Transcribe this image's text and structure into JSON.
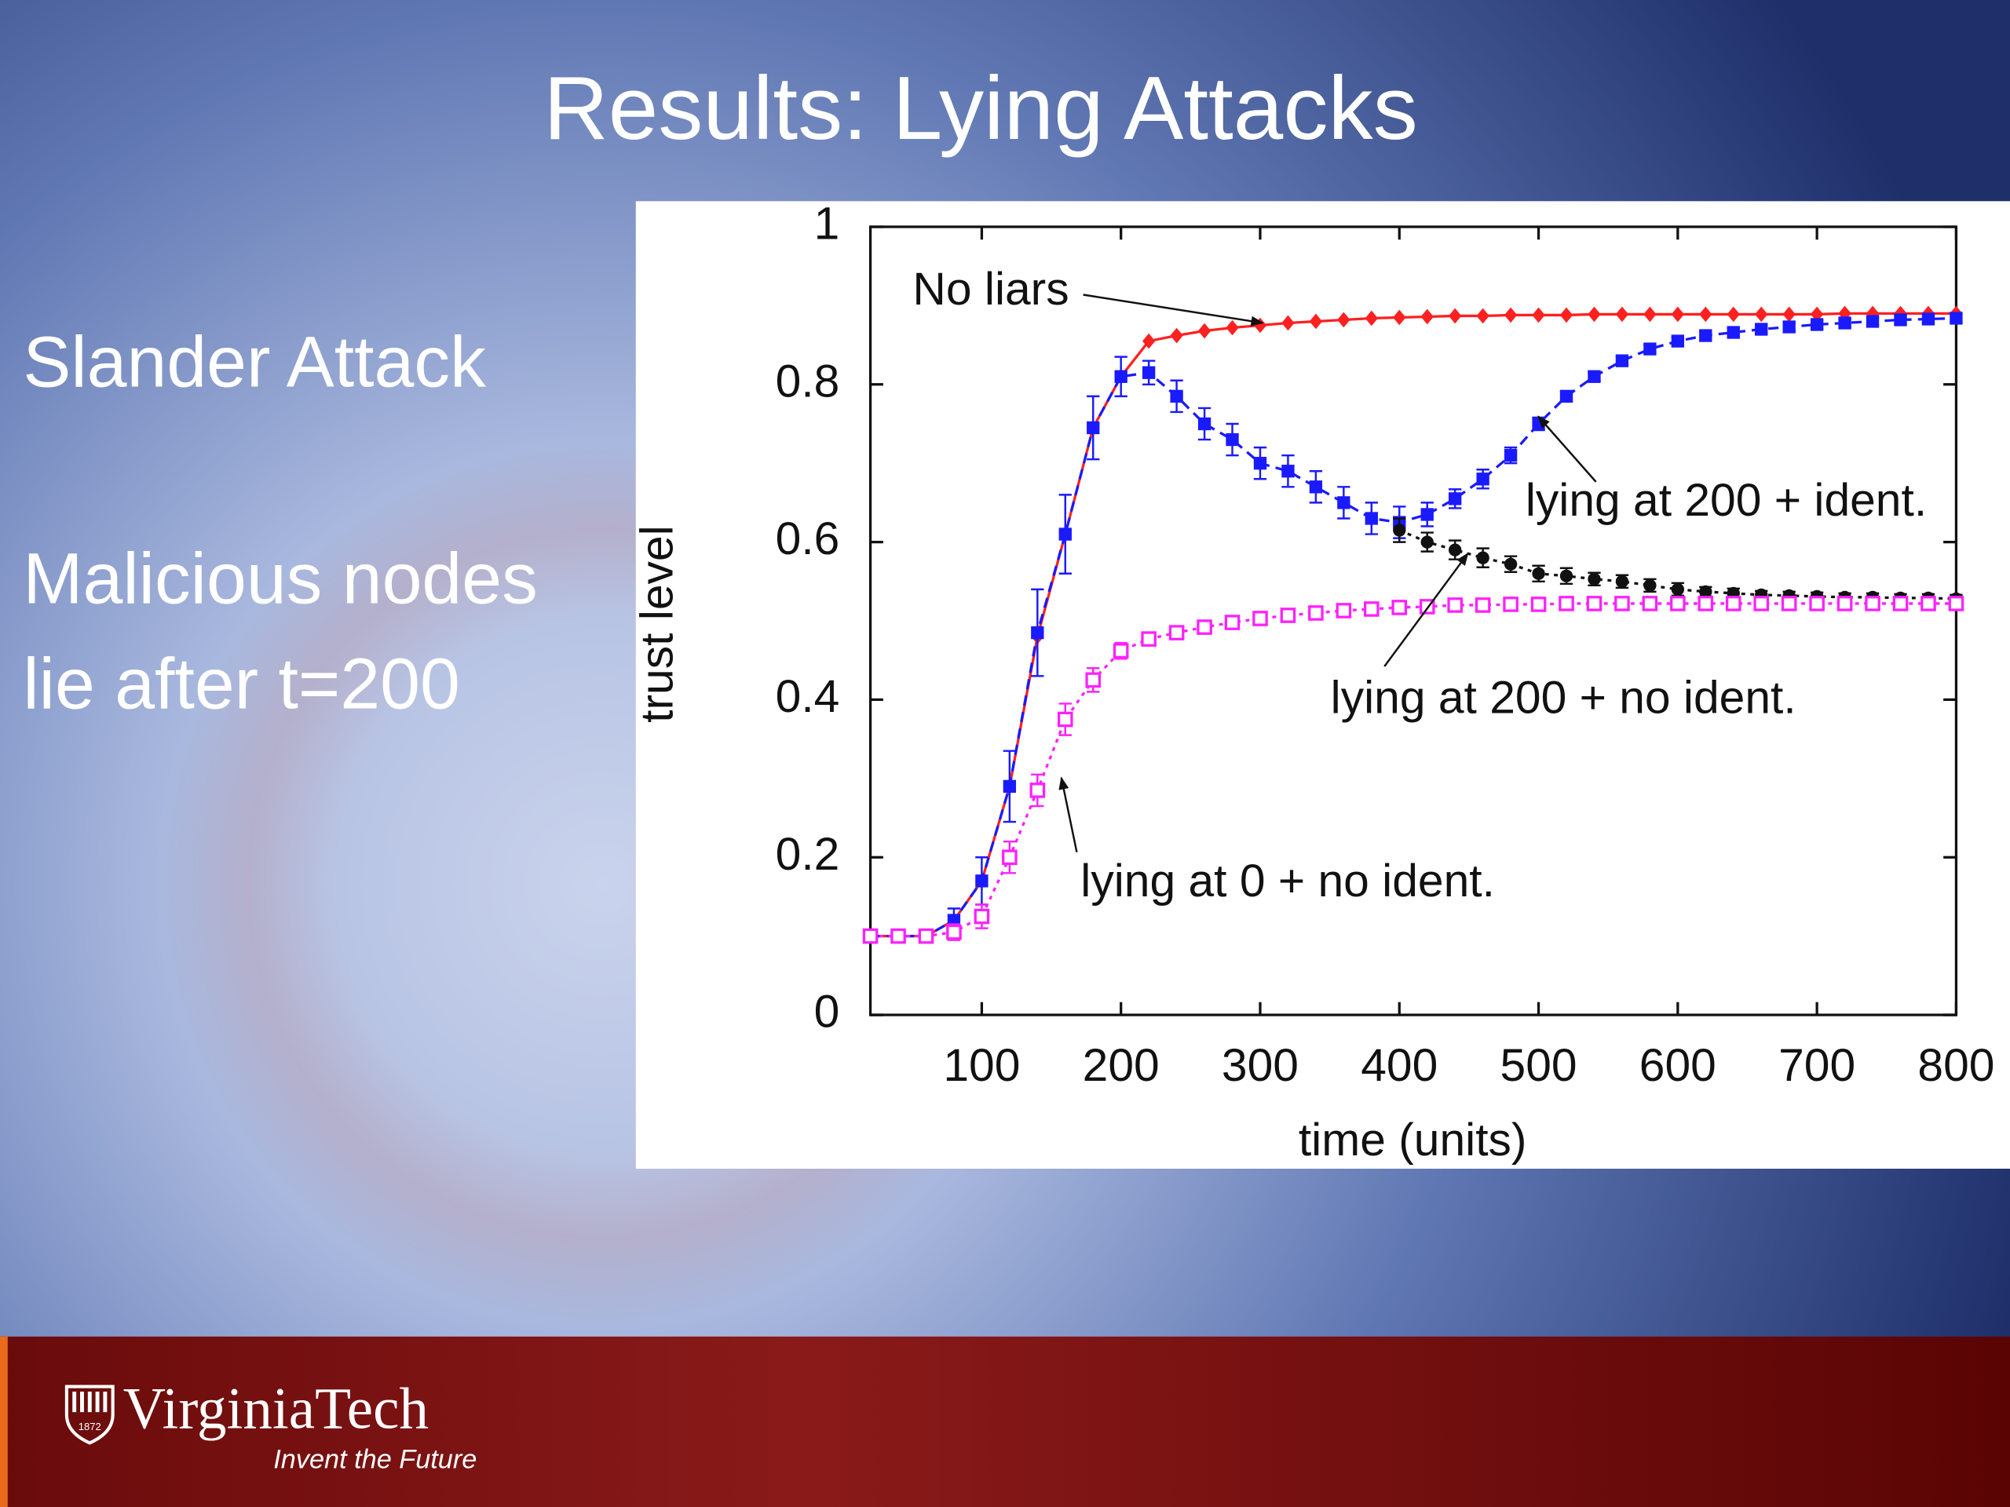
{
  "slide": {
    "title": "Results: Lying Attacks",
    "bullets": [
      "Slander Attack",
      "Malicious nodes",
      "lie after t=200"
    ]
  },
  "footer": {
    "logo": "VirginiaTech",
    "tagline": "Invent the Future",
    "shield_year": "1872"
  },
  "chart_data": {
    "type": "line",
    "x_label": "time (units)",
    "y_label": "trust level",
    "x": [
      20,
      40,
      60,
      80,
      100,
      120,
      140,
      160,
      180,
      200,
      220,
      240,
      260,
      280,
      300,
      320,
      340,
      360,
      380,
      400,
      420,
      440,
      460,
      480,
      500,
      520,
      540,
      560,
      580,
      600,
      620,
      640,
      660,
      680,
      700,
      720,
      740,
      760,
      780,
      800
    ],
    "xlim": [
      20,
      800
    ],
    "xticks": [
      100,
      200,
      300,
      400,
      500,
      600,
      700,
      800
    ],
    "ylim": [
      0,
      1
    ],
    "yticks": [
      0,
      0.2,
      0.4,
      0.6,
      0.8,
      1
    ],
    "series": [
      {
        "name": "No liars",
        "color": "#ff2020",
        "marker": "diamond",
        "line_style": "solid",
        "values": [
          0.1,
          0.1,
          0.1,
          0.12,
          0.17,
          0.29,
          0.48,
          0.61,
          0.745,
          0.81,
          0.855,
          0.862,
          0.868,
          0.872,
          0.875,
          0.878,
          0.88,
          0.882,
          0.884,
          0.885,
          0.886,
          0.887,
          0.887,
          0.888,
          0.888,
          0.888,
          0.889,
          0.889,
          0.889,
          0.889,
          0.889,
          0.889,
          0.889,
          0.889,
          0.889,
          0.89,
          0.89,
          0.89,
          0.89,
          0.89
        ]
      },
      {
        "name": "lying at 200 + ident.",
        "color": "#1a1aff",
        "marker": "square",
        "line_style": "dashed",
        "values": [
          0.1,
          0.1,
          0.1,
          0.12,
          0.17,
          0.29,
          0.485,
          0.61,
          0.745,
          0.81,
          0.815,
          0.785,
          0.75,
          0.73,
          0.7,
          0.69,
          0.67,
          0.65,
          0.63,
          0.625,
          0.635,
          0.655,
          0.68,
          0.71,
          0.75,
          0.785,
          0.81,
          0.83,
          0.845,
          0.855,
          0.862,
          0.866,
          0.87,
          0.873,
          0.876,
          0.878,
          0.88,
          0.882,
          0.883,
          0.884
        ],
        "errors": [
          0,
          0,
          0,
          0.015,
          0.03,
          0.045,
          0.055,
          0.05,
          0.04,
          0.025,
          0.015,
          0.02,
          0.02,
          0.02,
          0.02,
          0.02,
          0.02,
          0.02,
          0.02,
          0.02,
          0.015,
          0.012,
          0.012,
          0.01,
          0.008,
          0.006,
          0.005,
          0.005,
          0.005,
          0.005,
          0.005,
          0.005,
          0.005,
          0.005,
          0.005,
          0.005,
          0.005,
          0.005,
          0.005,
          0.005
        ]
      },
      {
        "name": "lying at 200 + no ident.",
        "color": "#111111",
        "marker": "circle",
        "line_style": "dotted",
        "values": [
          null,
          null,
          null,
          null,
          null,
          null,
          null,
          null,
          null,
          null,
          null,
          null,
          null,
          null,
          null,
          null,
          null,
          null,
          null,
          0.615,
          0.6,
          0.59,
          0.58,
          0.572,
          0.56,
          0.557,
          0.553,
          0.55,
          0.545,
          0.54,
          0.537,
          0.535,
          0.533,
          0.532,
          0.531,
          0.53,
          0.53,
          0.529,
          0.529,
          0.528
        ],
        "errors": [
          null,
          null,
          null,
          null,
          null,
          null,
          null,
          null,
          null,
          null,
          null,
          null,
          null,
          null,
          null,
          null,
          null,
          null,
          null,
          0.015,
          0.012,
          0.012,
          0.012,
          0.01,
          0.01,
          0.01,
          0.008,
          0.008,
          0.008,
          0.008,
          0.006,
          0.006,
          0.005,
          0.005,
          0.005,
          0.005,
          0.005,
          0.005,
          0.005,
          0.005
        ]
      },
      {
        "name": "lying at 0 + no ident.",
        "color": "#ff20ff",
        "marker": "open-square",
        "line_style": "dotted",
        "values": [
          0.1,
          0.1,
          0.1,
          0.105,
          0.125,
          0.2,
          0.285,
          0.375,
          0.425,
          0.462,
          0.477,
          0.485,
          0.492,
          0.498,
          0.503,
          0.507,
          0.51,
          0.513,
          0.515,
          0.517,
          0.518,
          0.52,
          0.52,
          0.521,
          0.521,
          0.522,
          0.522,
          0.522,
          0.522,
          0.522,
          0.522,
          0.522,
          0.522,
          0.522,
          0.522,
          0.522,
          0.522,
          0.522,
          0.522,
          0.522
        ],
        "errors": [
          0,
          0,
          0,
          0.01,
          0.015,
          0.02,
          0.02,
          0.02,
          0.015,
          0.01,
          0.006,
          0.005,
          0.005,
          0.005,
          0.005,
          0.005,
          0.005,
          0.005,
          0.005,
          0.005,
          0.005,
          0.005,
          0.005,
          0.005,
          0.005,
          0.005,
          0.005,
          0.005,
          0.005,
          0.005,
          0.005,
          0.005,
          0.005,
          0.005,
          0.005,
          0.005,
          0.005,
          0.005,
          0.005,
          0.005
        ]
      }
    ],
    "annotations": [
      {
        "text": "No liars"
      },
      {
        "text": "lying at 200 + ident."
      },
      {
        "text": "lying at 200 + no ident."
      },
      {
        "text": "lying at 0 + no ident."
      }
    ]
  }
}
